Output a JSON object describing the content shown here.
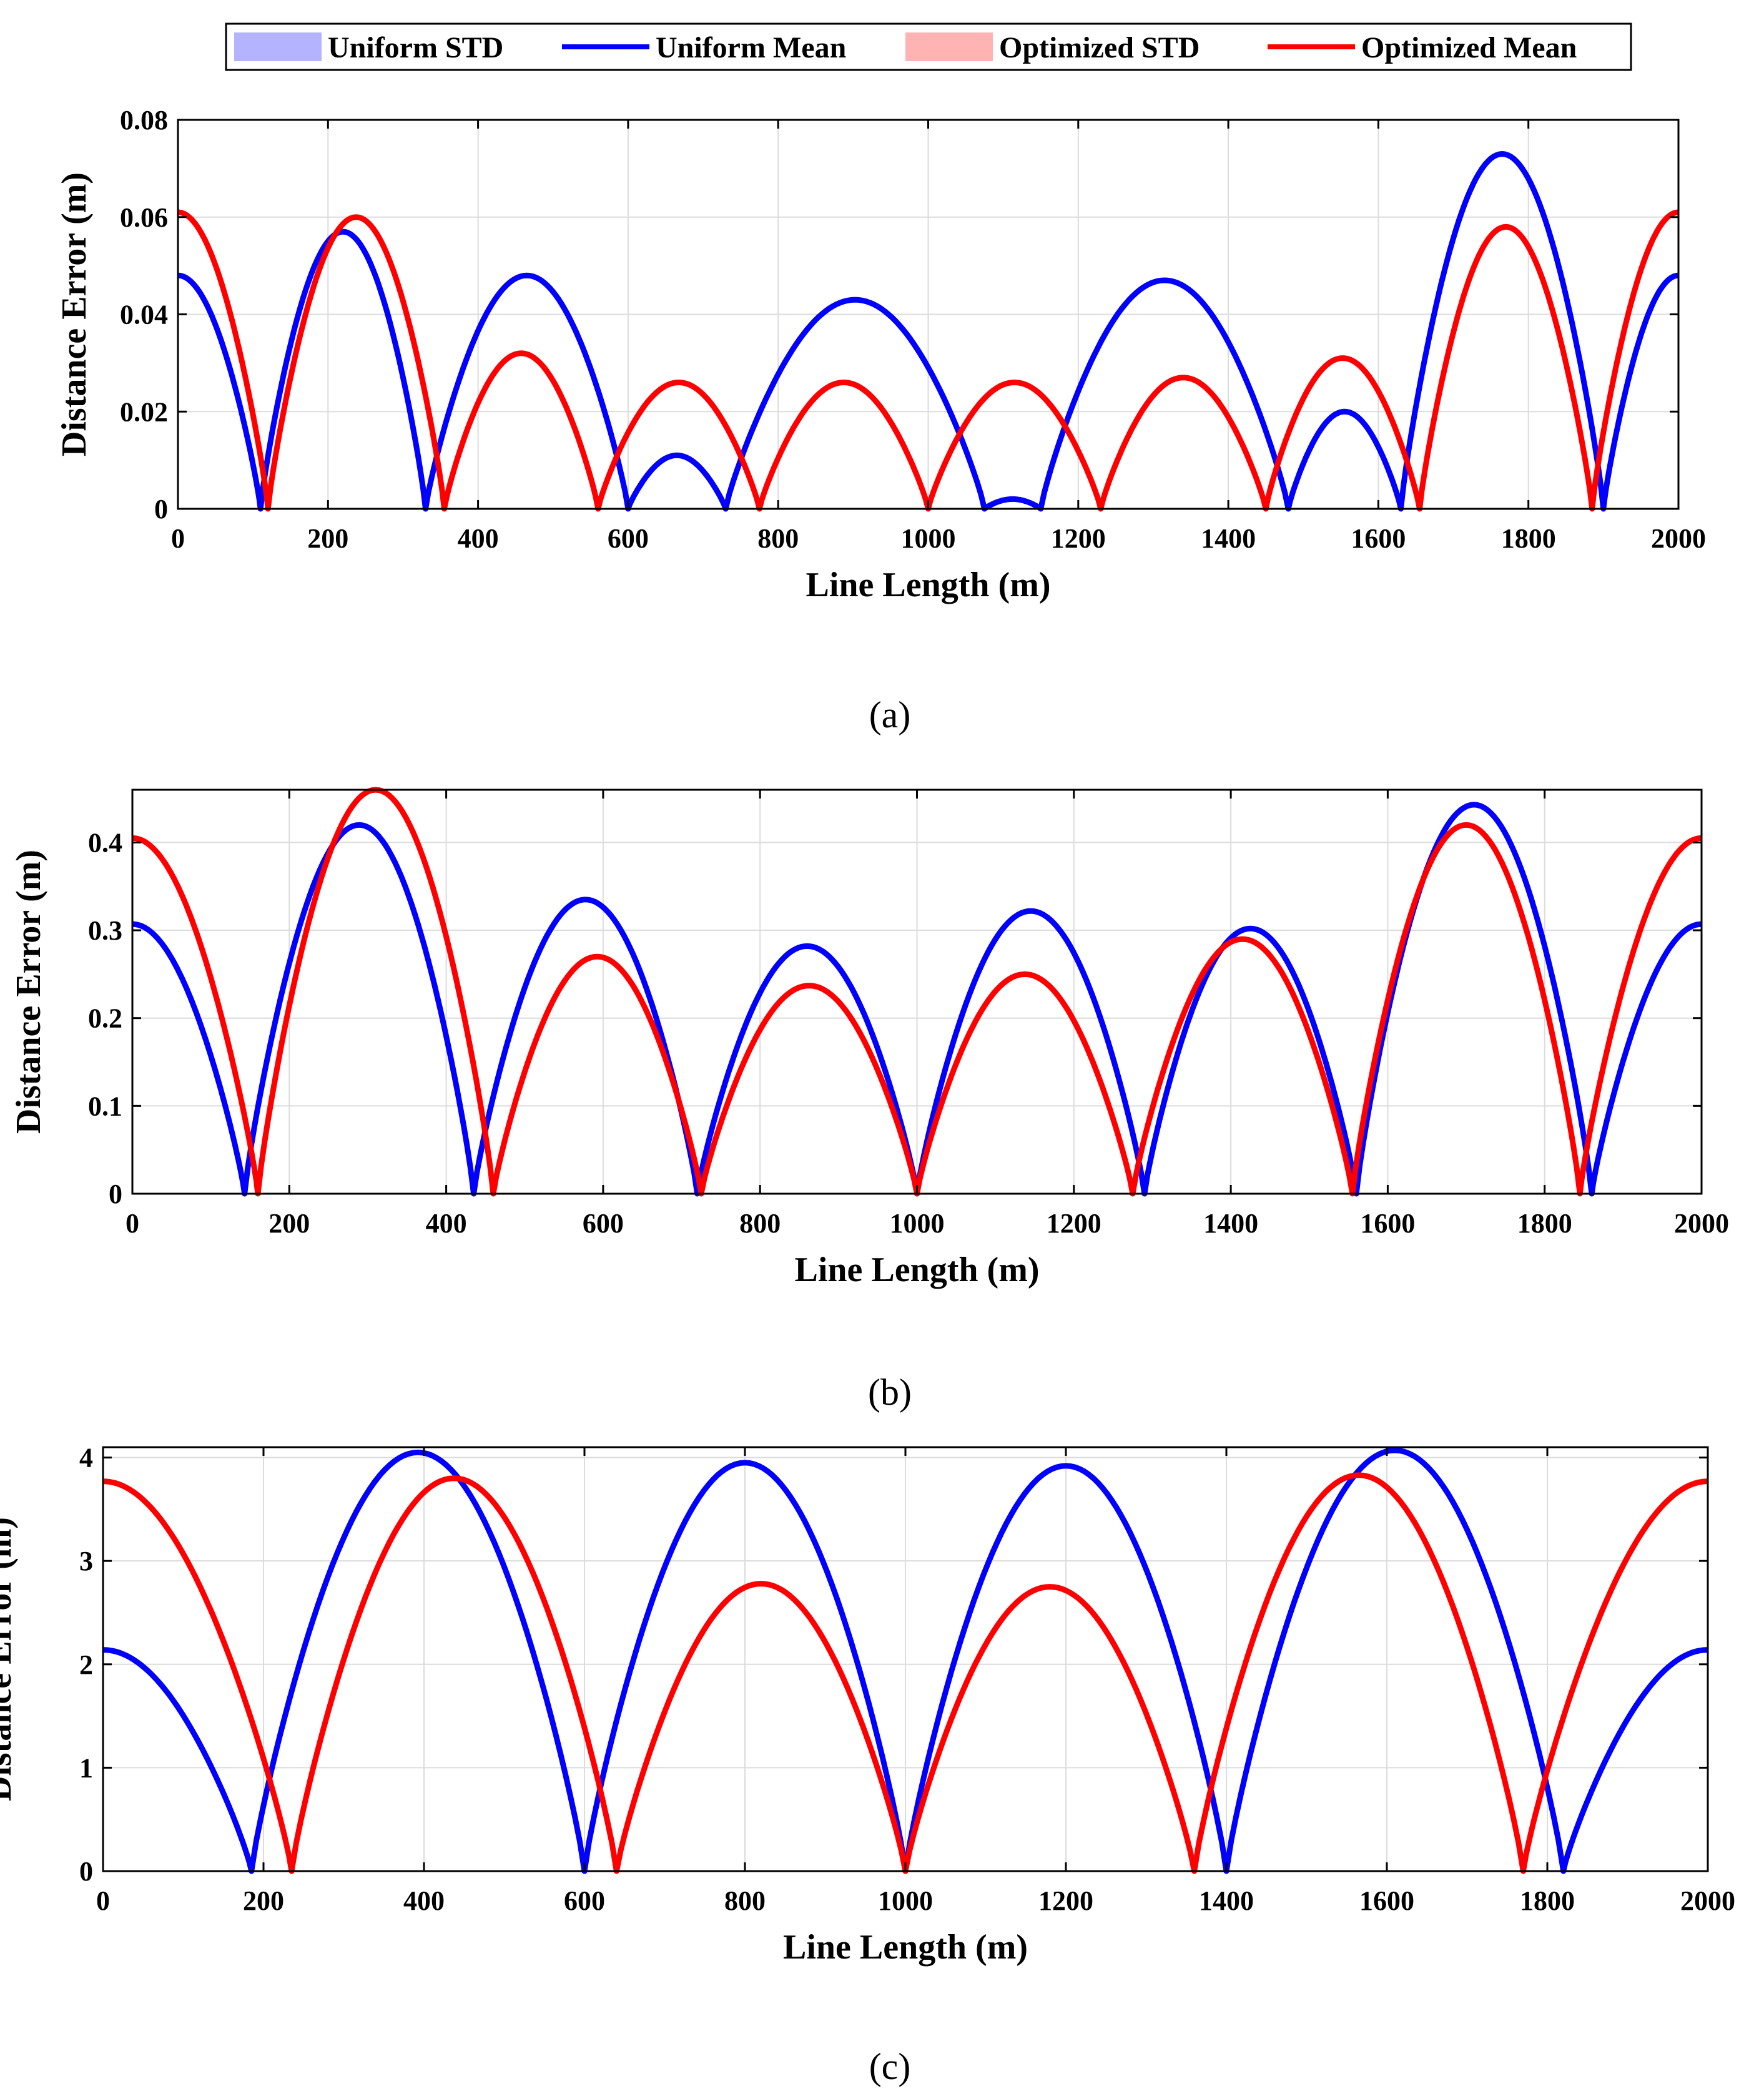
{
  "legend": {
    "items": [
      {
        "label": "Uniform STD",
        "kind": "patch",
        "color": "#b3b3ff"
      },
      {
        "label": "Uniform Mean",
        "kind": "line",
        "color": "#0000ff"
      },
      {
        "label": "Optimized STD",
        "kind": "patch",
        "color": "#ffb3b3"
      },
      {
        "label": "Optimized Mean",
        "kind": "line",
        "color": "#ff0000"
      }
    ]
  },
  "colors": {
    "uniform": "#0000ff",
    "optimized": "#ff0000",
    "grid": "#dcdcdc"
  },
  "chart_data": [
    {
      "type": "line",
      "caption": "(a)",
      "xlabel": "Line Length (m)",
      "ylabel": "Distance Error (m)",
      "xlim": [
        0,
        2000
      ],
      "ylim": [
        0,
        0.08
      ],
      "xticks": [
        0,
        200,
        400,
        600,
        800,
        1000,
        1200,
        1400,
        1600,
        1800,
        2000
      ],
      "xtick_labels": [
        "0",
        "200",
        "400",
        "600",
        "800",
        "1000",
        "1200",
        "1400",
        "1600",
        "1800",
        "2000"
      ],
      "yticks": [
        0,
        0.02,
        0.04,
        0.06,
        0.08
      ],
      "ytick_labels": [
        "0",
        "0.02",
        "0.04",
        "0.06",
        "0.08"
      ],
      "grid": true,
      "series": [
        {
          "name": "Uniform Mean",
          "color": "#0000ff",
          "zeros": [
            110,
            330,
            600,
            730,
            1075,
            1150,
            1480,
            1630,
            1900
          ],
          "peaks": [
            0.048,
            0.057,
            0.048,
            0.011,
            0.043,
            0.002,
            0.047,
            0.02,
            0.073,
            0.048
          ]
        },
        {
          "name": "Optimized Mean",
          "color": "#ff0000",
          "zeros": [
            120,
            355,
            560,
            775,
            1000,
            1230,
            1450,
            1655,
            1885
          ],
          "peaks": [
            0.061,
            0.06,
            0.032,
            0.026,
            0.026,
            0.026,
            0.027,
            0.031,
            0.058,
            0.061
          ]
        }
      ]
    },
    {
      "type": "line",
      "caption": "(b)",
      "xlabel": "Line Length (m)",
      "ylabel": "Distance Error (m)",
      "xlim": [
        0,
        2000
      ],
      "ylim": [
        0,
        0.46
      ],
      "xticks": [
        0,
        200,
        400,
        600,
        800,
        1000,
        1200,
        1400,
        1600,
        1800,
        2000
      ],
      "xtick_labels": [
        "0",
        "200",
        "400",
        "600",
        "800",
        "1000",
        "1200",
        "1400",
        "1600",
        "1800",
        "2000"
      ],
      "yticks": [
        0,
        0.1,
        0.2,
        0.3,
        0.4
      ],
      "ytick_labels": [
        "0",
        "0.1",
        "0.2",
        "0.3",
        "0.4"
      ],
      "grid": true,
      "series": [
        {
          "name": "Uniform Mean",
          "color": "#0000ff",
          "zeros": [
            143,
            435,
            720,
            1000,
            1290,
            1560,
            1860
          ],
          "peaks": [
            0.307,
            0.42,
            0.335,
            0.282,
            0.322,
            0.302,
            0.443,
            0.307
          ]
        },
        {
          "name": "Optimized Mean",
          "color": "#ff0000",
          "zeros": [
            160,
            460,
            725,
            1000,
            1275,
            1555,
            1845
          ],
          "peaks": [
            0.405,
            0.46,
            0.27,
            0.237,
            0.25,
            0.29,
            0.42,
            0.405
          ]
        }
      ]
    },
    {
      "type": "line",
      "caption": "(c)",
      "xlabel": "Line Length (m)",
      "ylabel": "Distance Error (m)",
      "xlim": [
        0,
        2000
      ],
      "ylim": [
        0,
        4.1
      ],
      "xticks": [
        0,
        200,
        400,
        600,
        800,
        1000,
        1200,
        1400,
        1600,
        1800,
        2000
      ],
      "xtick_labels": [
        "0",
        "200",
        "400",
        "600",
        "800",
        "1000",
        "1200",
        "1400",
        "1600",
        "1800",
        "2000"
      ],
      "yticks": [
        0,
        1,
        2,
        3,
        4
      ],
      "ytick_labels": [
        "0",
        "1",
        "2",
        "3",
        "4"
      ],
      "grid": true,
      "series": [
        {
          "name": "Uniform Mean",
          "color": "#0000ff",
          "zeros": [
            185,
            600,
            1000,
            1400,
            1820
          ],
          "peaks": [
            2.14,
            4.05,
            3.95,
            3.92,
            4.07,
            2.14
          ]
        },
        {
          "name": "Optimized Mean",
          "color": "#ff0000",
          "zeros": [
            235,
            640,
            1000,
            1360,
            1770
          ],
          "peaks": [
            3.77,
            3.8,
            2.78,
            2.75,
            3.83,
            3.77
          ]
        }
      ]
    }
  ]
}
